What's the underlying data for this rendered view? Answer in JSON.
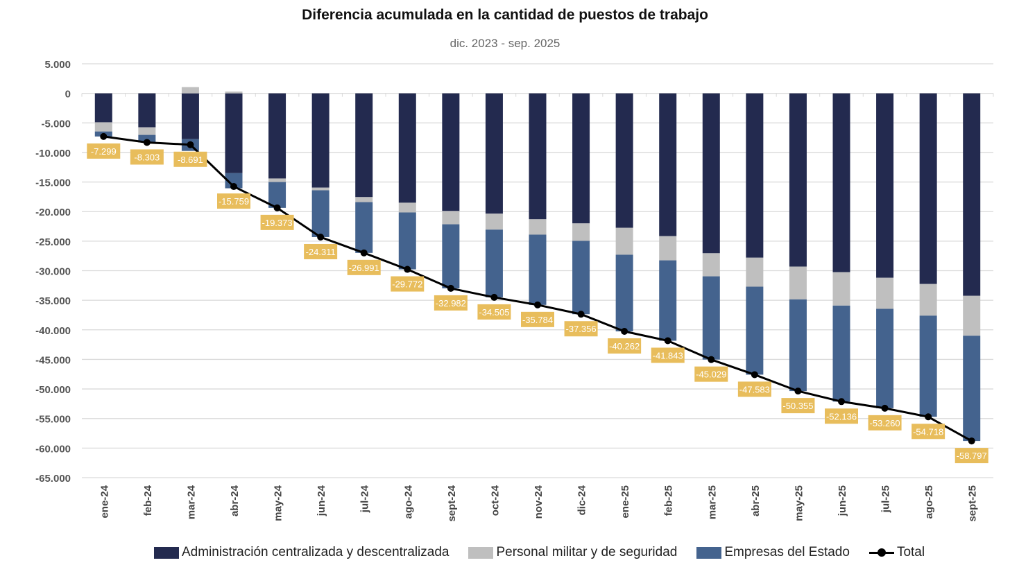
{
  "chart_data": {
    "type": "bar",
    "stacked": true,
    "title": "Diferencia acumulada en la cantidad de puestos de trabajo",
    "subtitle": "dic. 2023 - sep. 2025",
    "xlabel": "",
    "ylabel": "",
    "ylim": [
      -65000,
      5000
    ],
    "yticks": [
      5000,
      0,
      -5000,
      -10000,
      -15000,
      -20000,
      -25000,
      -30000,
      -35000,
      -40000,
      -45000,
      -50000,
      -55000,
      -60000,
      -65000
    ],
    "ytick_labels": [
      "5.000",
      "0",
      "-5.000",
      "-10.000",
      "-15.000",
      "-20.000",
      "-25.000",
      "-30.000",
      "-35.000",
      "-40.000",
      "-45.000",
      "-50.000",
      "-55.000",
      "-60.000",
      "-65.000"
    ],
    "grid": true,
    "legend_position": "bottom",
    "categories": [
      "ene-24",
      "feb-24",
      "mar-24",
      "abr-24",
      "may-24",
      "jun-24",
      "jul-24",
      "ago-24",
      "sept-24",
      "oct-24",
      "nov-24",
      "dic-24",
      "ene-25",
      "feb-25",
      "mar-25",
      "abr-25",
      "may-25",
      "jun-25",
      "jul-25",
      "ago-25",
      "sept-25"
    ],
    "series": [
      {
        "name": "Administración centralizada y descentralizada",
        "color": "#232A4F",
        "values": [
          -4900,
          -5750,
          -7750,
          -13500,
          -14400,
          -15950,
          -17550,
          -18500,
          -19900,
          -20350,
          -21300,
          -22000,
          -22750,
          -24150,
          -27050,
          -27800,
          -29300,
          -30250,
          -31200,
          -32250,
          -34250
        ]
      },
      {
        "name": "Personal militar y de seguridad",
        "color": "#BFBFBF",
        "values": [
          -1550,
          -1280,
          1050,
          300,
          -600,
          -450,
          -850,
          -1650,
          -2250,
          -2700,
          -2600,
          -2950,
          -4550,
          -4100,
          -3900,
          -4900,
          -5550,
          -5650,
          -5250,
          -5350,
          -6750
        ]
      },
      {
        "name": "Empresas del Estado",
        "color": "#44638E",
        "values": [
          -849,
          -1273,
          -1991,
          -2559,
          -4373,
          -7911,
          -8591,
          -9622,
          -10832,
          -11455,
          -11884,
          -12406,
          -12962,
          -13593,
          -14079,
          -14883,
          -15505,
          -16236,
          -16810,
          -17118,
          -17797
        ]
      }
    ],
    "total": {
      "name": "Total",
      "color": "#000000",
      "label_color": "#E8BD5C",
      "values": [
        -7299,
        -8303,
        -8691,
        -15759,
        -19373,
        -24311,
        -26991,
        -29772,
        -32982,
        -34505,
        -35784,
        -37356,
        -40262,
        -41843,
        -45029,
        -47583,
        -50355,
        -52136,
        -53260,
        -54718,
        -58797
      ],
      "labels": [
        "-7.299",
        "-8.303",
        "-8.691",
        "-15.759",
        "-19.373",
        "-24.311",
        "-26.991",
        "-29.772",
        "-32.982",
        "-34.505",
        "-35.784",
        "-37.356",
        "-40.262",
        "-41.843",
        "-45.029",
        "-47.583",
        "-50.355",
        "-52.136",
        "-53.260",
        "-54.718",
        "-58.797"
      ]
    }
  }
}
